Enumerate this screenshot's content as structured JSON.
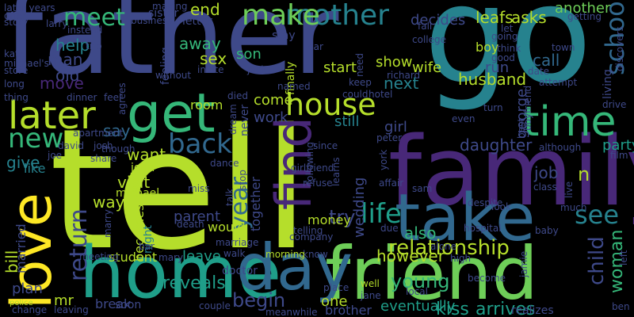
{
  "background": "#000000",
  "palette": [
    "#fde725",
    "#b5de2b",
    "#6ece58",
    "#35b779",
    "#1f9e89",
    "#26828e",
    "#31688e",
    "#3e4989",
    "#482878",
    "#440154"
  ],
  "words": [
    {
      "text": "tell",
      "color": "#b5de2b"
    },
    {
      "text": "father",
      "color": "#3e4989"
    },
    {
      "text": "go",
      "color": "#26828e"
    },
    {
      "text": "family",
      "color": "#482878"
    },
    {
      "text": "friend",
      "color": "#6ece58"
    },
    {
      "text": "home",
      "color": "#1f9e89"
    },
    {
      "text": "take",
      "color": "#31688e"
    },
    {
      "text": "day",
      "color": "#31688e"
    },
    {
      "text": "get",
      "color": "#35b779"
    },
    {
      "text": "love",
      "color": "#fde725"
    },
    {
      "text": "find",
      "color": "#482878"
    },
    {
      "text": "time",
      "color": "#35b779"
    },
    {
      "text": "later",
      "color": "#b5de2b"
    },
    {
      "text": "house",
      "color": "#b5de2b"
    },
    {
      "text": "mother",
      "color": "#26828e"
    },
    {
      "text": "make",
      "color": "#6ece58"
    },
    {
      "text": "back",
      "color": "#31688e"
    },
    {
      "text": "life",
      "color": "#1f9e89"
    },
    {
      "text": "school",
      "color": "#31688e"
    },
    {
      "text": "see",
      "color": "#26828e"
    },
    {
      "text": "year",
      "color": "#31688e"
    },
    {
      "text": "return",
      "color": "#3e4989"
    },
    {
      "text": "new",
      "color": "#35b779"
    },
    {
      "text": "meet",
      "color": "#35b779"
    },
    {
      "text": "relationship",
      "color": "#b5de2b"
    },
    {
      "text": "child",
      "color": "#3e4989"
    },
    {
      "text": "woman",
      "color": "#35b779"
    },
    {
      "text": "young",
      "color": "#35b779"
    },
    {
      "text": "reveals",
      "color": "#1f9e89"
    },
    {
      "text": "begin",
      "color": "#3e4989"
    },
    {
      "text": "arrives",
      "color": "#1f9e89"
    },
    {
      "text": "kiss",
      "color": "#1f9e89"
    },
    {
      "text": "eventually",
      "color": "#1f9e89"
    },
    {
      "text": "however",
      "color": "#b5de2b"
    },
    {
      "text": "also",
      "color": "#35b779"
    },
    {
      "text": "try",
      "color": "#3e4989"
    },
    {
      "text": "money",
      "color": "#b5de2b"
    },
    {
      "text": "wedding",
      "color": "#3e4989"
    },
    {
      "text": "daughter",
      "color": "#3e4989"
    },
    {
      "text": "party",
      "color": "#1f9e89"
    },
    {
      "text": "job",
      "color": "#3e4989"
    },
    {
      "text": "n",
      "color": "#b5de2b"
    },
    {
      "text": "husband",
      "color": "#b5de2b"
    },
    {
      "text": "run",
      "color": "#3e4989"
    },
    {
      "text": "call",
      "color": "#31688e"
    },
    {
      "text": "george",
      "color": "#3e4989"
    },
    {
      "text": "girl",
      "color": "#3e4989"
    },
    {
      "text": "wife",
      "color": "#b5de2b"
    },
    {
      "text": "show",
      "color": "#b5de2b"
    },
    {
      "text": "next",
      "color": "#26828e"
    },
    {
      "text": "leafs",
      "color": "#b5de2b"
    },
    {
      "text": "asks",
      "color": "#b5de2b"
    },
    {
      "text": "another",
      "color": "#6ece58"
    },
    {
      "text": "decides",
      "color": "#3e4989"
    },
    {
      "text": "start",
      "color": "#b5de2b"
    },
    {
      "text": "still",
      "color": "#26828e"
    },
    {
      "text": "work",
      "color": "#3e4989"
    },
    {
      "text": "come",
      "color": "#b5de2b"
    },
    {
      "text": "son",
      "color": "#35b779"
    },
    {
      "text": "room",
      "color": "#b5de2b"
    },
    {
      "text": "end",
      "color": "#b5de2b"
    },
    {
      "text": "away",
      "color": "#35b779"
    },
    {
      "text": "sex",
      "color": "#b5de2b"
    },
    {
      "text": "help",
      "color": "#26828e"
    },
    {
      "text": "man",
      "color": "#3e4989"
    },
    {
      "text": "old",
      "color": "#3e4989"
    },
    {
      "text": "move",
      "color": "#482878"
    },
    {
      "text": "give",
      "color": "#26828e"
    },
    {
      "text": "want",
      "color": "#b5de2b"
    },
    {
      "text": "say",
      "color": "#31688e"
    },
    {
      "text": "visit",
      "color": "#b5de2b"
    },
    {
      "text": "way",
      "color": "#b5de2b"
    },
    {
      "text": "parent",
      "color": "#3e4989"
    },
    {
      "text": "night",
      "color": "#26828e"
    },
    {
      "text": "becomes",
      "color": "#b5de2b"
    },
    {
      "text": "john",
      "color": "#b5de2b"
    },
    {
      "text": "michael",
      "color": "#b5de2b"
    },
    {
      "text": "like",
      "color": "#26828e"
    },
    {
      "text": "leave",
      "color": "#1f9e89"
    },
    {
      "text": "student",
      "color": "#b5de2b"
    },
    {
      "text": "plan",
      "color": "#3e4989"
    },
    {
      "text": "mr",
      "color": "#b5de2b"
    },
    {
      "text": "break",
      "color": "#3e4989"
    },
    {
      "text": "soon",
      "color": "#3e4989"
    },
    {
      "text": "one",
      "color": "#b5de2b"
    },
    {
      "text": "brother",
      "color": "#3e4989"
    },
    {
      "text": "would",
      "color": "#b5de2b"
    },
    {
      "text": "together",
      "color": "#3e4989"
    },
    {
      "text": "bill",
      "color": "#b5de2b"
    },
    {
      "text": "married",
      "color": "#3e4989"
    },
    {
      "text": "police",
      "color": "#b5de2b"
    },
    {
      "text": "sister",
      "color": "#3e4989"
    },
    {
      "text": "letter",
      "color": "#3e4989"
    },
    {
      "text": "feeling",
      "color": "#3e4989"
    },
    {
      "text": "stay",
      "color": "#3e4989"
    },
    {
      "text": "finally",
      "color": "#b5de2b"
    },
    {
      "text": "boy",
      "color": "#b5de2b"
    },
    {
      "text": "kate",
      "color": "#3e4989"
    },
    {
      "text": "know",
      "color": "#3e4989"
    },
    {
      "text": "place",
      "color": "#3e4989"
    },
    {
      "text": "well",
      "color": "#b5de2b"
    },
    {
      "text": "jane",
      "color": "#3e4989"
    },
    {
      "text": "realizes",
      "color": "#3e4989"
    },
    {
      "text": "meanwhile",
      "color": "#3e4989"
    },
    {
      "text": "couple",
      "color": "#3e4989"
    },
    {
      "text": "morning",
      "color": "#b5de2b"
    },
    {
      "text": "doctor",
      "color": "#3e4989"
    },
    {
      "text": "never",
      "color": "#3e4989"
    },
    {
      "text": "later years",
      "color": "#3e4989"
    },
    {
      "text": "offer",
      "color": "#3e4989"
    },
    {
      "text": "story",
      "color": "#3e4989"
    },
    {
      "text": "larry",
      "color": "#3e4989"
    },
    {
      "text": "instead",
      "color": "#3e4989"
    },
    {
      "text": "trip",
      "color": "#3e4989"
    },
    {
      "text": "though",
      "color": "#3e4989"
    },
    {
      "text": "michael's",
      "color": "#3e4989"
    },
    {
      "text": "store",
      "color": "#3e4989"
    },
    {
      "text": "long",
      "color": "#3e4989"
    },
    {
      "text": "thing",
      "color": "#3e4989"
    },
    {
      "text": "dinner",
      "color": "#3e4989"
    },
    {
      "text": "feel",
      "color": "#3e4989"
    },
    {
      "text": "without",
      "color": "#3e4989"
    },
    {
      "text": "invite",
      "color": "#3e4989"
    },
    {
      "text": "jack",
      "color": "#3e4989"
    },
    {
      "text": "named",
      "color": "#3e4989"
    },
    {
      "text": "keep",
      "color": "#3e4989"
    },
    {
      "text": "died",
      "color": "#3e4989"
    },
    {
      "text": "dream",
      "color": "#3e4989"
    },
    {
      "text": "car",
      "color": "#3e4989"
    },
    {
      "text": "could",
      "color": "#3e4989"
    },
    {
      "text": "hotel",
      "color": "#3e4989"
    },
    {
      "text": "richard",
      "color": "#3e4989"
    },
    {
      "text": "need",
      "color": "#3e4989"
    },
    {
      "text": "college",
      "color": "#3e4989"
    },
    {
      "text": "fall",
      "color": "#3e4989"
    },
    {
      "text": "let",
      "color": "#3e4989"
    },
    {
      "text": "going",
      "color": "#3e4989"
    },
    {
      "text": "think",
      "color": "#3e4989"
    },
    {
      "text": "good",
      "color": "#3e4989"
    },
    {
      "text": "town",
      "color": "#3e4989"
    },
    {
      "text": "date",
      "color": "#3e4989"
    },
    {
      "text": "attempt",
      "color": "#3e4989"
    },
    {
      "text": "living",
      "color": "#3e4989"
    },
    {
      "text": "discovers",
      "color": "#3e4989"
    },
    {
      "text": "getting",
      "color": "#3e4989"
    },
    {
      "text": "making",
      "color": "#3e4989"
    },
    {
      "text": "business",
      "color": "#3e4989"
    },
    {
      "text": "even",
      "color": "#3e4989"
    },
    {
      "text": "turn",
      "color": "#3e4989"
    },
    {
      "text": "drive",
      "color": "#3e4989"
    },
    {
      "text": "best",
      "color": "#3e4989"
    },
    {
      "text": "boyfriend",
      "color": "#3e4989"
    },
    {
      "text": "although",
      "color": "#3e4989"
    },
    {
      "text": "film",
      "color": "#3e4989"
    },
    {
      "text": "since",
      "color": "#3e4989"
    },
    {
      "text": "peter",
      "color": "#3e4989"
    },
    {
      "text": "apartment",
      "color": "#3e4989"
    },
    {
      "text": "david",
      "color": "#3e4989"
    },
    {
      "text": "josh",
      "color": "#3e4989"
    },
    {
      "text": "agrees",
      "color": "#3e4989"
    },
    {
      "text": "joe",
      "color": "#3e4989"
    },
    {
      "text": "share",
      "color": "#3e4989"
    },
    {
      "text": "dance",
      "color": "#3e4989"
    },
    {
      "text": "stop",
      "color": "#3e4989"
    },
    {
      "text": "girlfriend",
      "color": "#3e4989"
    },
    {
      "text": "learns",
      "color": "#3e4989"
    },
    {
      "text": "york",
      "color": "#3e4989"
    },
    {
      "text": "affair",
      "color": "#3e4989"
    },
    {
      "text": "sam",
      "color": "#3e4989"
    },
    {
      "text": "class",
      "color": "#3e4989"
    },
    {
      "text": "miss",
      "color": "#3e4989"
    },
    {
      "text": "talk",
      "color": "#3e4989"
    },
    {
      "text": "refuse",
      "color": "#3e4989"
    },
    {
      "text": "following",
      "color": "#3e4989"
    },
    {
      "text": "live",
      "color": "#3e4989"
    },
    {
      "text": "much",
      "color": "#3e4989"
    },
    {
      "text": "despite",
      "color": "#3e4989"
    },
    {
      "text": "look",
      "color": "#3e4989"
    },
    {
      "text": "death",
      "color": "#3e4989"
    },
    {
      "text": "marriage",
      "color": "#3e4989"
    },
    {
      "text": "telling",
      "color": "#3e4989"
    },
    {
      "text": "company",
      "color": "#3e4989"
    },
    {
      "text": "due",
      "color": "#3e4989"
    },
    {
      "text": "hospital",
      "color": "#3e4989"
    },
    {
      "text": "baby",
      "color": "#3e4989"
    },
    {
      "text": "marry",
      "color": "#3e4989"
    },
    {
      "text": "bar",
      "color": "#3e4989"
    },
    {
      "text": "meeting",
      "color": "#3e4989"
    },
    {
      "text": "mary",
      "color": "#3e4989"
    },
    {
      "text": "walk",
      "color": "#3e4989"
    },
    {
      "text": "alone",
      "color": "#3e4989"
    },
    {
      "text": "high",
      "color": "#3e4989"
    },
    {
      "text": "become",
      "color": "#3e4989"
    },
    {
      "text": "local",
      "color": "#3e4989"
    },
    {
      "text": "jamie",
      "color": "#3e4989"
    },
    {
      "text": "left",
      "color": "#3e4989"
    },
    {
      "text": "ben",
      "color": "#3e4989"
    },
    {
      "text": "change",
      "color": "#3e4989"
    },
    {
      "text": "leaving",
      "color": "#3e4989"
    },
    {
      "text": "care",
      "color": "#3e4989"
    },
    {
      "text": "mark",
      "color": "#3e4989"
    },
    {
      "text": "play",
      "color": "#3e4989"
    }
  ]
}
